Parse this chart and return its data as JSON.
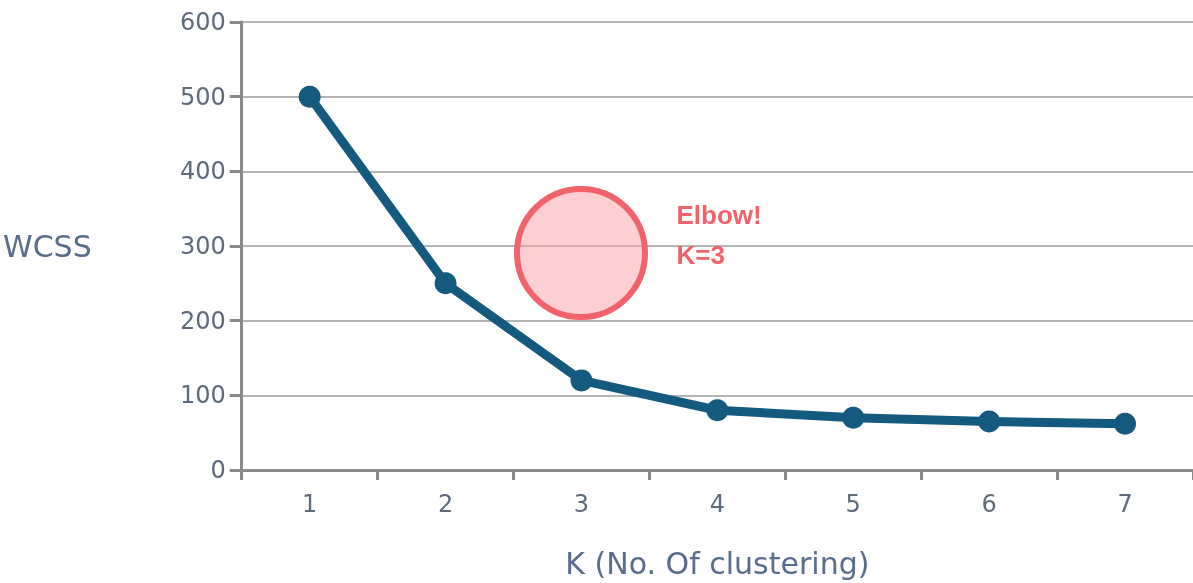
{
  "chart_data": {
    "type": "line",
    "xlabel": "K (No. Of clustering)",
    "ylabel": "WCSS",
    "categories": [
      "1",
      "2",
      "3",
      "4",
      "5",
      "6",
      "7"
    ],
    "series": [
      {
        "color": "#135a7e",
        "values": [
          500,
          250,
          120,
          80,
          70,
          65,
          62
        ]
      }
    ],
    "ylim": [
      0,
      600
    ],
    "yticks": [
      0,
      100,
      200,
      300,
      400,
      500,
      600
    ],
    "grid": "y",
    "marker": "circle",
    "line_style": "solid",
    "annotations": [
      "Elbow!\nK=3"
    ]
  }
}
